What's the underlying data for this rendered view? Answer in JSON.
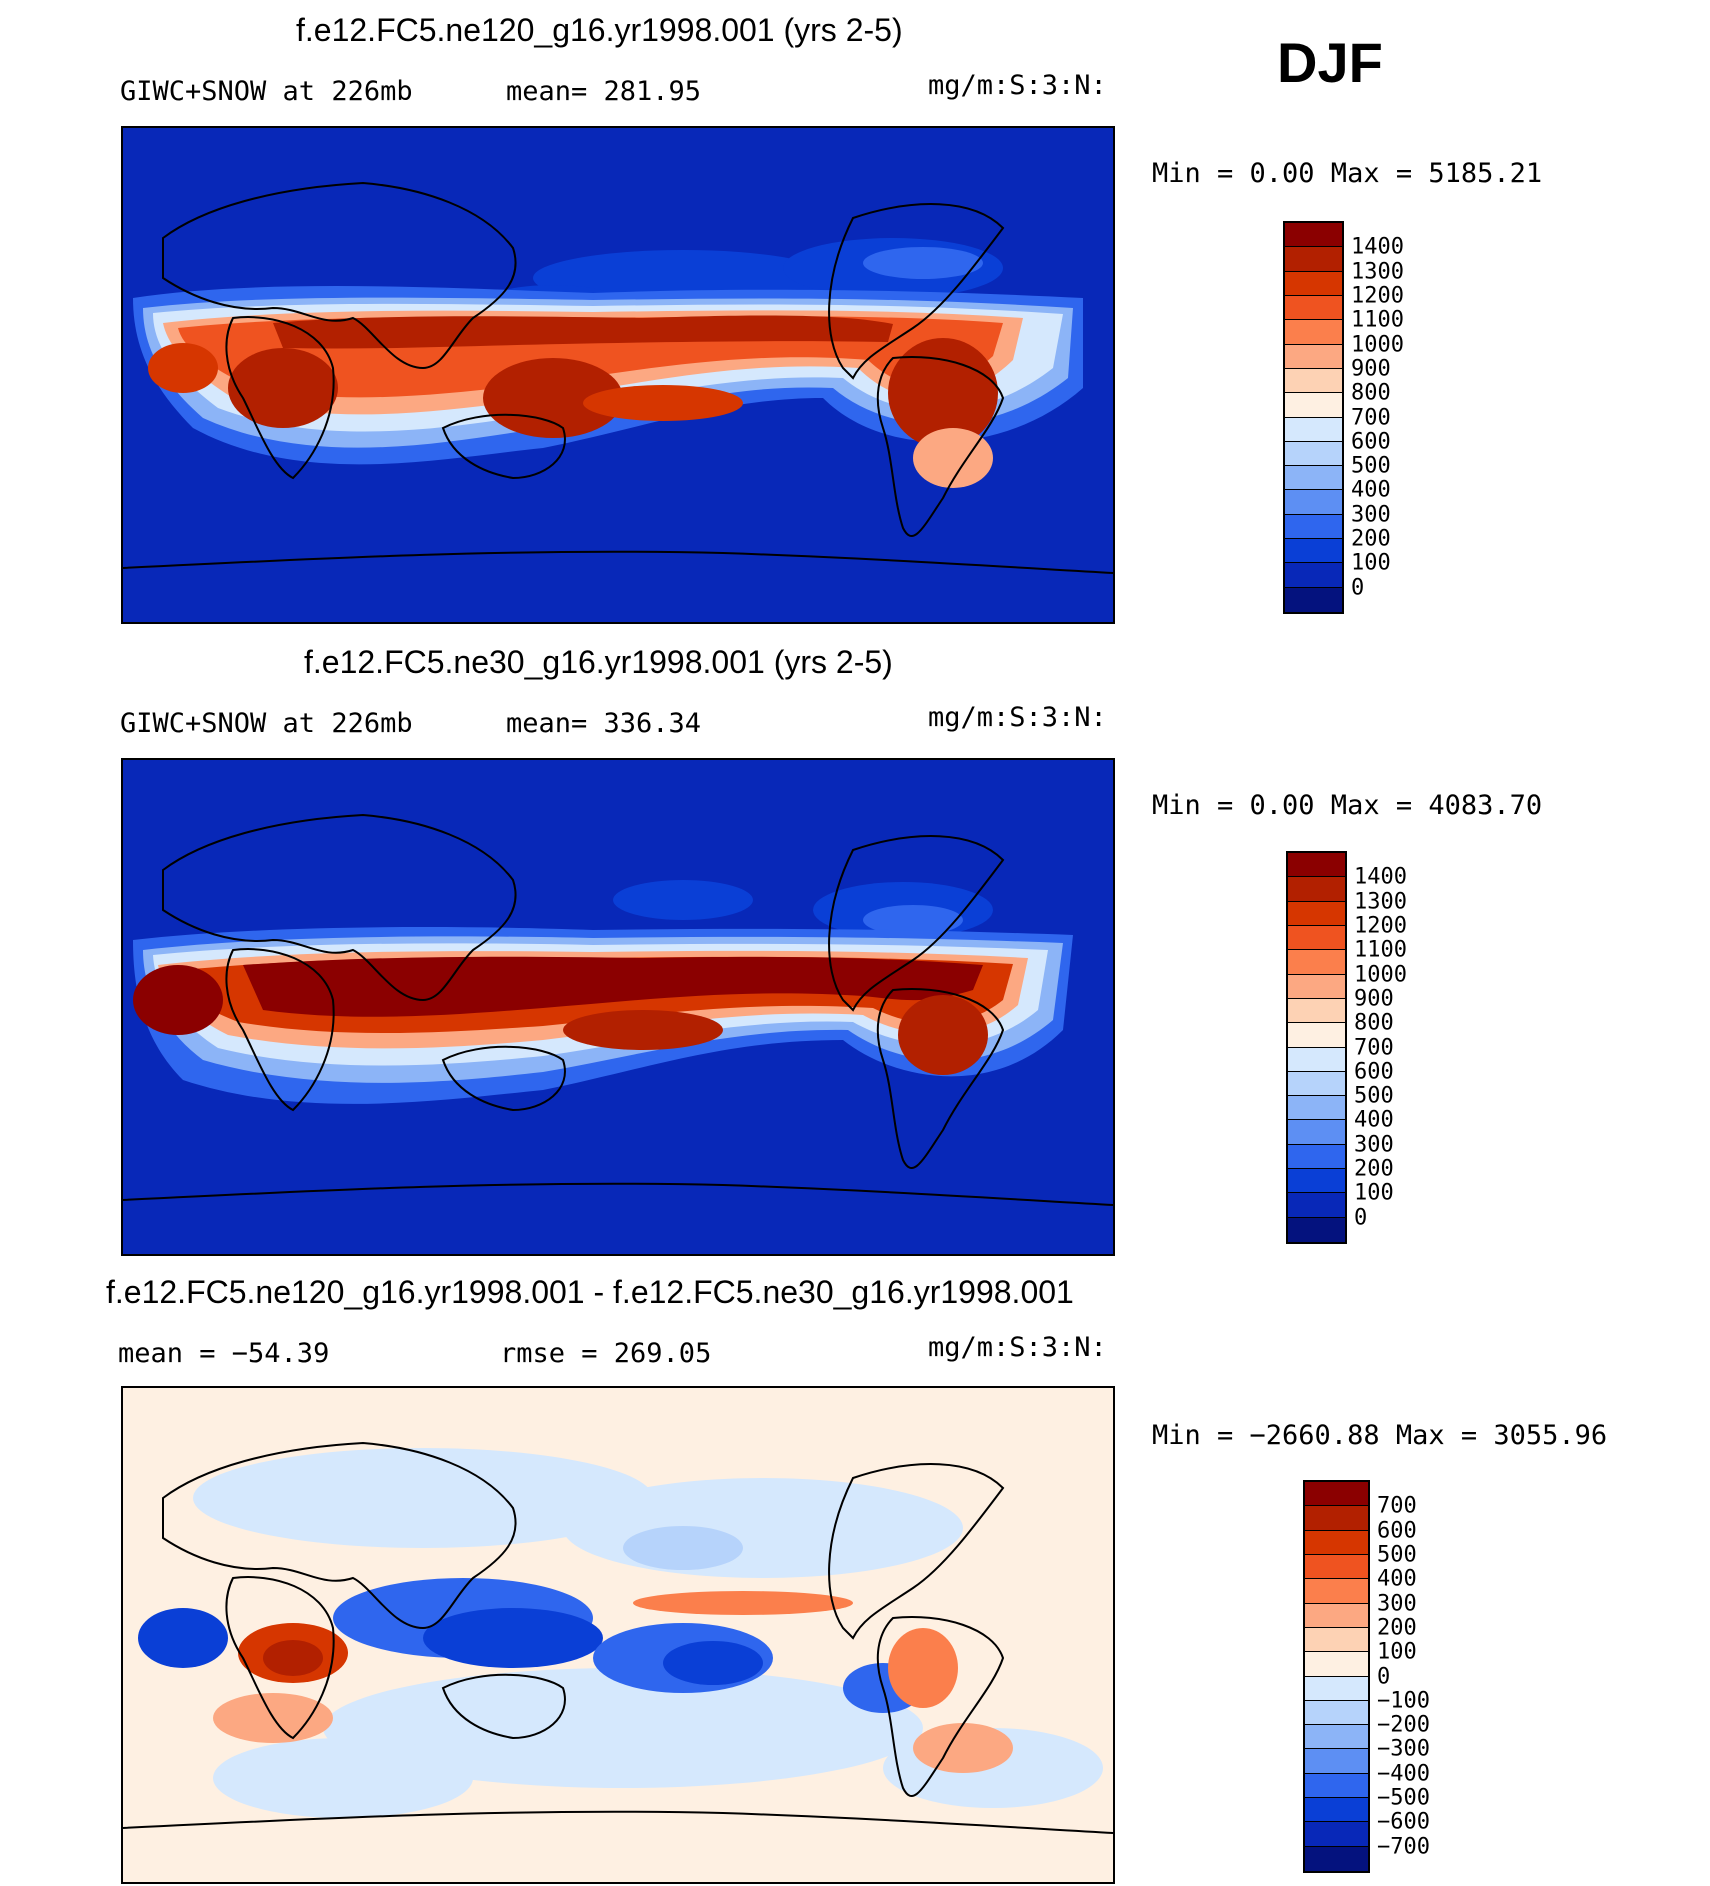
{
  "season": "DJF",
  "panels": [
    {
      "title": "f.e12.FC5.ne120_g16.yr1998.001 (yrs 2-5)",
      "subtitle_left": "GIWC+SNOW at 226mb",
      "subtitle_mid": "mean= 281.95",
      "units": "mg/m:S:3:N:",
      "minmax": "Min =    0.00 Max = 5185.21",
      "colorbar_labels": [
        "1400",
        "1300",
        "1200",
        "1100",
        "1000",
        "900",
        "800",
        "700",
        "600",
        "500",
        "400",
        "300",
        "200",
        "100",
        "0"
      ],
      "colorbar_colors": [
        "#8b0000",
        "#b22000",
        "#d63600",
        "#ef5320",
        "#fb7f4c",
        "#fca882",
        "#fdd2b4",
        "#fef0e2",
        "#d5e8fd",
        "#b6d3fb",
        "#8cb4f7",
        "#5d8ff3",
        "#2f66ee",
        "#0a3fd6",
        "#0828b8",
        "#04127e"
      ]
    },
    {
      "title": "f.e12.FC5.ne30_g16.yr1998.001 (yrs 2-5)",
      "subtitle_left": "GIWC+SNOW at 226mb",
      "subtitle_mid": "mean= 336.34",
      "units": "mg/m:S:3:N:",
      "minmax": "Min =    0.00 Max = 4083.70",
      "colorbar_labels": [
        "1400",
        "1300",
        "1200",
        "1100",
        "1000",
        "900",
        "800",
        "700",
        "600",
        "500",
        "400",
        "300",
        "200",
        "100",
        "0"
      ],
      "colorbar_colors": [
        "#8b0000",
        "#b22000",
        "#d63600",
        "#ef5320",
        "#fb7f4c",
        "#fca882",
        "#fdd2b4",
        "#fef0e2",
        "#d5e8fd",
        "#b6d3fb",
        "#8cb4f7",
        "#5d8ff3",
        "#2f66ee",
        "#0a3fd6",
        "#0828b8",
        "#04127e"
      ]
    },
    {
      "title": "f.e12.FC5.ne120_g16.yr1998.001 - f.e12.FC5.ne30_g16.yr1998.001",
      "subtitle_left": "mean = −54.39",
      "subtitle_mid": "rmse = 269.05",
      "units": "mg/m:S:3:N:",
      "minmax": "Min = −2660.88 Max = 3055.96",
      "colorbar_labels": [
        "700",
        "600",
        "500",
        "400",
        "300",
        "200",
        "100",
        "0",
        "−100",
        "−200",
        "−300",
        "−400",
        "−500",
        "−600",
        "−700"
      ],
      "colorbar_colors": [
        "#8b0000",
        "#b22000",
        "#d63600",
        "#ef5320",
        "#fb7f4c",
        "#fca882",
        "#fdd2b4",
        "#fef0e2",
        "#d5e8fd",
        "#b6d3fb",
        "#8cb4f7",
        "#5d8ff3",
        "#2f66ee",
        "#0a3fd6",
        "#0828b8",
        "#04127e"
      ]
    }
  ]
}
